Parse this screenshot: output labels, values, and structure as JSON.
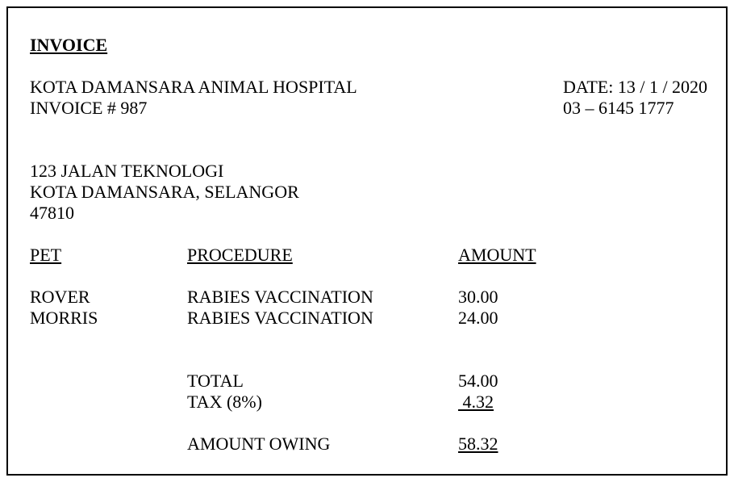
{
  "document": {
    "title": "INVOICE"
  },
  "header": {
    "business_name": "KOTA DAMANSARA ANIMAL HOSPITAL",
    "invoice_number_line": "INVOICE # 987",
    "date_line": "DATE: 13 / 1 / 2020",
    "phone": "03 – 6145 1777"
  },
  "address": {
    "line1": "123 JALAN TEKNOLOGI",
    "line2": "KOTA DAMANSARA, SELANGOR",
    "line3": "47810"
  },
  "table": {
    "headers": {
      "pet": "PET",
      "procedure": "PROCEDURE",
      "amount": "AMOUNT"
    },
    "rows": [
      {
        "pet": "ROVER",
        "procedure": "RABIES VACCINATION",
        "amount": "30.00"
      },
      {
        "pet": "MORRIS",
        "procedure": "RABIES VACCINATION",
        "amount": "24.00"
      }
    ]
  },
  "totals": {
    "total_label": "TOTAL",
    "total_value": "54.00",
    "tax_label": "TAX (8%)",
    "tax_value": " 4.32",
    "owing_label": "AMOUNT OWING",
    "owing_value": "58.32"
  },
  "colors": {
    "text": "#000000",
    "background": "#ffffff",
    "border": "#000000"
  }
}
